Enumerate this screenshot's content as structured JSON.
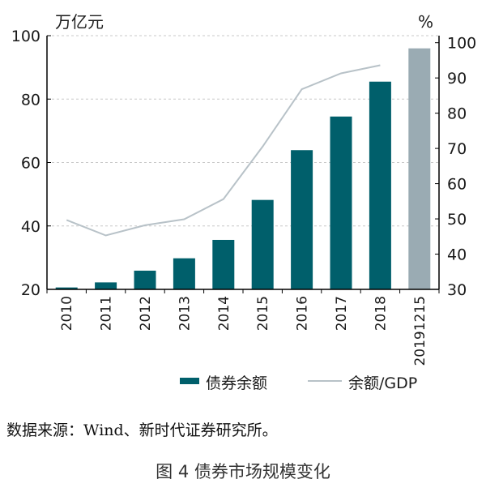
{
  "chart_data": {
    "type": "bar",
    "categories": [
      "2010",
      "2011",
      "2012",
      "2013",
      "2014",
      "2015",
      "2016",
      "2017",
      "2018",
      "20191215"
    ],
    "series": [
      {
        "name": "债券余额",
        "kind": "bar",
        "axis": "left",
        "values": [
          20.6,
          22.2,
          25.9,
          29.8,
          35.6,
          48.2,
          63.9,
          74.5,
          85.5,
          96.0
        ],
        "color": "#005f6b",
        "highlight_last_color": "#9aabb3"
      },
      {
        "name": "余额/GDP",
        "kind": "line",
        "axis": "right",
        "values": [
          49.7,
          45.3,
          48.2,
          49.9,
          55.6,
          70.5,
          86.8,
          91.3,
          93.6,
          null
        ],
        "color": "#b8c2c8"
      }
    ],
    "left_axis": {
      "unit_label": "万亿元",
      "ylim": [
        20,
        100
      ],
      "ticks": [
        20,
        40,
        60,
        80,
        100
      ]
    },
    "right_axis": {
      "unit_label": "%",
      "ylim": [
        30,
        102
      ],
      "ticks": [
        30,
        40,
        50,
        60,
        70,
        80,
        90,
        100
      ]
    },
    "gridlines": "dashed",
    "legend_position": "bottom"
  },
  "source_note": "数据来源：Wind、新时代证券研究所。",
  "figure_caption": "图 4 债券市场规模变化"
}
